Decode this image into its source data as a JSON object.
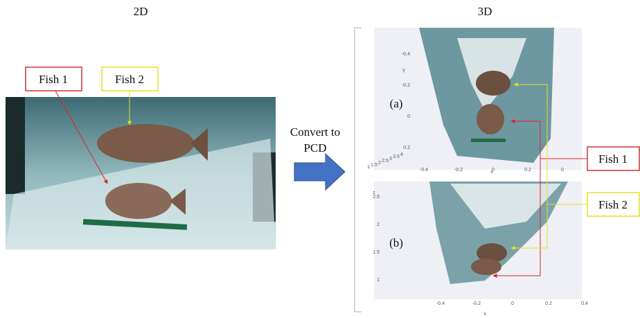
{
  "header": {
    "left": "2D",
    "right": "3D"
  },
  "photo_labels": [
    "Fish 1",
    "Fish 2"
  ],
  "arrow_label": [
    "Convert to",
    "PCD"
  ],
  "panels": [
    {
      "label": "(a)",
      "y_title": "y",
      "yticks": [
        "-0.4",
        "-0.2",
        "0",
        "0.2"
      ],
      "x_title": "x",
      "xticks": [
        "-0.4",
        "-0.2",
        "0",
        "0.2",
        "0"
      ],
      "zticks": [
        "1",
        "1.5",
        "2",
        "2.5",
        "3",
        "3.5",
        "4"
      ]
    },
    {
      "label": "(b)",
      "z_title": "z",
      "zticks": [
        "2.5",
        "2",
        "1.5",
        "1"
      ],
      "x_title": "x",
      "xticks": [
        "-0.4",
        "-0.2",
        "0",
        "0.2",
        "0.4"
      ]
    }
  ],
  "callouts": [
    "Fish 1",
    "Fish 2"
  ]
}
